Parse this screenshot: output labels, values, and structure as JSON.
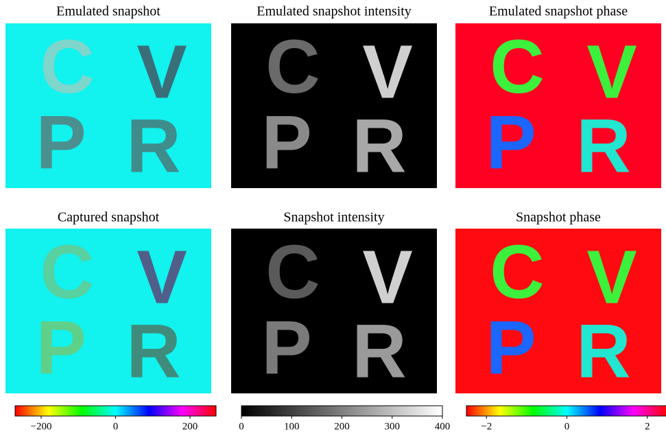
{
  "letters": [
    "C",
    "V",
    "P",
    "R"
  ],
  "panels": [
    {
      "title": "Emulated snapshot",
      "background": "#12f2ee",
      "letter_colors": [
        "#7fd6cc",
        "#3a6f7a",
        "#4b8f8f",
        "#3f8c8c"
      ]
    },
    {
      "title": "Emulated snapshot intensity",
      "background": "#000000",
      "letter_colors": [
        "#6a6a6a",
        "#cfcfcf",
        "#8a8a8a",
        "#a8a8a8"
      ]
    },
    {
      "title": "Emulated snapshot phase",
      "background": "#ff0022",
      "letter_colors": [
        "#3cf03c",
        "#3cf03c",
        "#1a66ff",
        "#22e6d0"
      ]
    },
    {
      "title": "Captured snapshot",
      "background": "#12f2ee",
      "letter_colors": [
        "#58d0a0",
        "#505f8a",
        "#5fd08a",
        "#3f8c7c"
      ]
    },
    {
      "title": "Snapshot intensity",
      "background": "#000000",
      "letter_colors": [
        "#5a5a5a",
        "#d0d0d0",
        "#7a7a7a",
        "#9a9a9a"
      ]
    },
    {
      "title": "Snapshot phase",
      "background": "#ff0a10",
      "letter_colors": [
        "#3cf03c",
        "#3cf03c",
        "#1a66ff",
        "#22e6d0"
      ]
    }
  ],
  "colorbars": [
    {
      "lim": [
        -270,
        270
      ],
      "ticks": [
        {
          "value": -200,
          "label": "−200"
        },
        0,
        200
      ],
      "colors": [
        "#ff0000",
        "#ffff00",
        "#00ff00",
        "#00ffff",
        "#0000ff",
        "#ff00ff",
        "#ff0000"
      ]
    },
    {
      "lim": [
        0,
        400
      ],
      "ticks": [
        0,
        100,
        200,
        300,
        400
      ],
      "colors": [
        "#000000",
        "#ffffff"
      ]
    },
    {
      "lim": [
        -2.5,
        2.5
      ],
      "ticks": [
        {
          "value": -2,
          "label": "−2"
        },
        0,
        2
      ],
      "colors": [
        "#ff0000",
        "#ffff00",
        "#00ff00",
        "#00ffff",
        "#0000ff",
        "#ff00ff",
        "#ff0000"
      ]
    }
  ]
}
